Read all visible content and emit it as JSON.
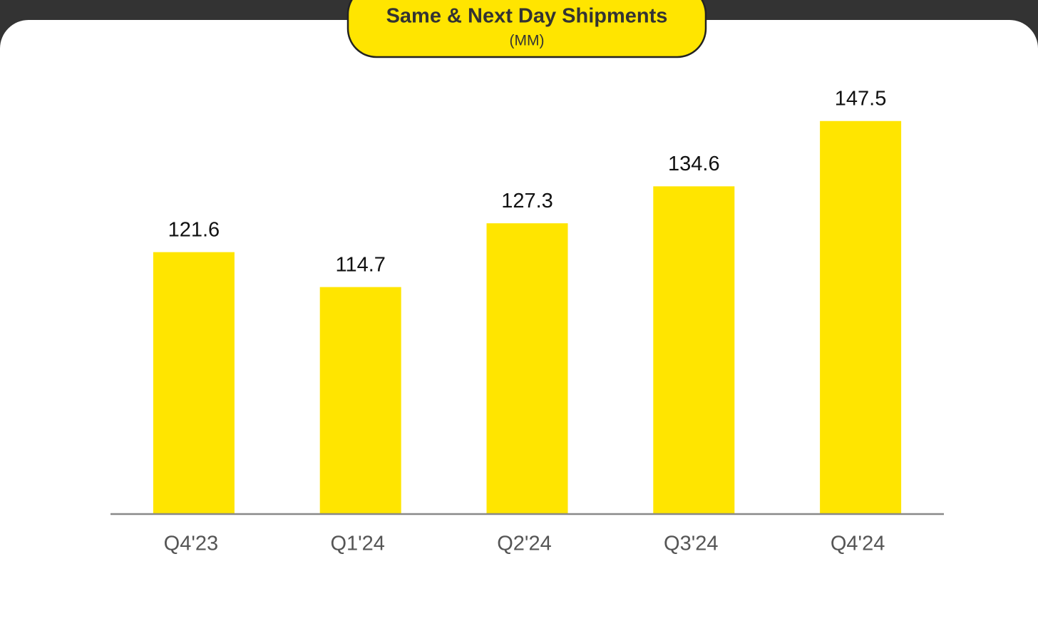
{
  "chart_data": {
    "type": "bar",
    "title": "Same & Next Day Shipments",
    "subtitle": "(MM)",
    "categories": [
      "Q4'23",
      "Q1'24",
      "Q2'24",
      "Q3'24",
      "Q4'24"
    ],
    "values": [
      121.6,
      114.7,
      127.3,
      134.6,
      147.5
    ],
    "color": "#ffe500",
    "ylim": [
      70,
      150
    ]
  }
}
